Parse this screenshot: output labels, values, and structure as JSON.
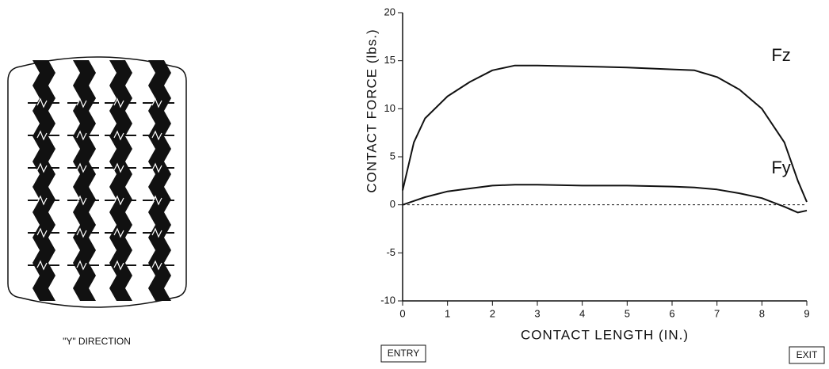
{
  "chart_data": {
    "type": "line",
    "ylabel": "CONTACT FORCE (lbs.)",
    "xlabel": "CONTACT LENGTH (IN.)",
    "entry_label": "ENTRY",
    "exit_label": "EXIT",
    "figure_caption": "\"Y\" DIRECTION",
    "x": [
      0,
      0.25,
      0.5,
      1,
      1.5,
      2,
      2.5,
      3,
      4,
      5,
      6,
      6.5,
      7,
      7.5,
      8,
      8.5,
      8.8,
      9
    ],
    "series": [
      {
        "name": "Fz",
        "color": "#111111",
        "values": [
          1.5,
          6.5,
          9,
          11.3,
          12.8,
          14,
          14.5,
          14.5,
          14.4,
          14.3,
          14.1,
          14,
          13.3,
          12,
          10,
          6.5,
          2.5,
          0.3
        ]
      },
      {
        "name": "Fy",
        "color": "#111111",
        "values": [
          0,
          0.4,
          0.8,
          1.4,
          1.7,
          2,
          2.1,
          2.1,
          2,
          2,
          1.9,
          1.8,
          1.6,
          1.2,
          0.7,
          -0.2,
          -0.8,
          -0.6
        ]
      }
    ],
    "reference_line": 0,
    "xlim": [
      0,
      9
    ],
    "xticks": [
      0,
      1,
      2,
      3,
      4,
      5,
      6,
      7,
      8,
      9
    ],
    "ylim": [
      -10,
      20
    ],
    "yticks": [
      -10,
      -5,
      0,
      5,
      10,
      15,
      20
    ],
    "grid": false
  }
}
